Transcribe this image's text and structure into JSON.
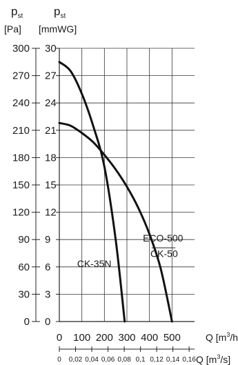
{
  "chart_data": {
    "type": "line",
    "title": "",
    "left_axis": {
      "label_symbol": "p",
      "label_subscript": "st",
      "unit": "[Pa]",
      "ticks": [
        0,
        30,
        60,
        90,
        120,
        150,
        180,
        210,
        240,
        270,
        300
      ],
      "range": [
        0,
        300
      ]
    },
    "right_axis": {
      "label_symbol": "p",
      "label_subscript": "st",
      "unit": "[mmWG]",
      "ticks": [
        0,
        3,
        6,
        9,
        12,
        15,
        18,
        21,
        24,
        27,
        30
      ]
    },
    "x_axis": {
      "label_pre": "Q [m",
      "label_sup": "3",
      "label_post": "/h]",
      "ticks": [
        0,
        100,
        200,
        300,
        400,
        500
      ],
      "tick_labels": [
        "0",
        "100",
        "200",
        "300",
        "400",
        "500"
      ],
      "range": [
        0,
        600
      ]
    },
    "x_axis_secondary": {
      "label_pre": "Q [m",
      "label_sup": "3",
      "label_post": "/s]",
      "ticks": [
        0,
        0.02,
        0.04,
        0.06,
        0.08,
        0.1,
        0.12,
        0.14,
        0.16
      ],
      "tick_labels": [
        "0",
        "0,02",
        "0,04",
        "0,06",
        "0,08",
        "0,1",
        "0,12",
        "0,14",
        "0,16"
      ]
    },
    "grid": true,
    "series": [
      {
        "name": "CK-35N",
        "x": [
          0,
          50,
          100,
          150,
          200,
          250,
          290
        ],
        "y": [
          285,
          275,
          250,
          215,
          170,
          90,
          0
        ]
      },
      {
        "name": "ECO-500 / CK-50",
        "x": [
          0,
          50,
          100,
          150,
          200,
          250,
          300,
          350,
          400,
          450,
          500
        ],
        "y": [
          218,
          215,
          207,
          197,
          183,
          167,
          148,
          125,
          96,
          58,
          0
        ]
      }
    ],
    "annotations": [
      {
        "text": "CK-35N",
        "x": 155,
        "y": 60
      },
      {
        "text": "ECO-500",
        "x": 460,
        "y": 88
      },
      {
        "text": "CK-50",
        "x": 465,
        "y": 71
      }
    ]
  }
}
